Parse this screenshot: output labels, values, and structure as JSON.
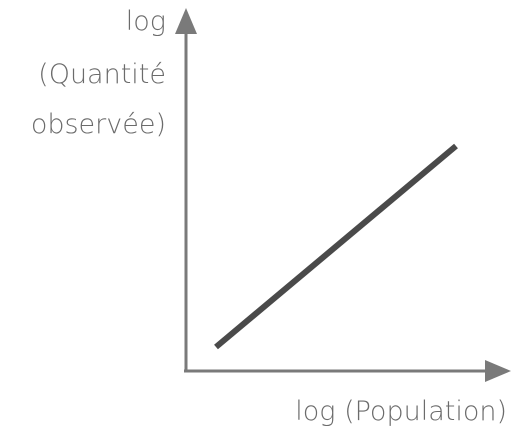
{
  "y_axis_label": [
    "log",
    "(Quantité",
    "observée)"
  ],
  "x_axis_label": "log (Population)"
}
